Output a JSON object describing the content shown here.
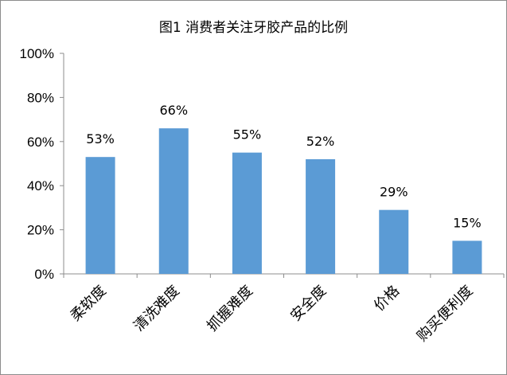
{
  "chart_data": {
    "type": "bar",
    "title": "图1 消费者关注牙胶产品的比例",
    "categories": [
      "柔软度",
      "清洗难度",
      "抓握难度",
      "安全度",
      "价格",
      "购买便利度"
    ],
    "values": [
      53,
      66,
      55,
      52,
      29,
      15
    ],
    "data_labels": [
      "53%",
      "66%",
      "55%",
      "52%",
      "29%",
      "15%"
    ],
    "y_ticks": [
      "0%",
      "20%",
      "40%",
      "60%",
      "80%",
      "100%"
    ],
    "ylim": [
      0,
      100
    ],
    "xlabel": "",
    "ylabel": "",
    "grid": false,
    "legend": "none",
    "bar_color": "#5b9bd5"
  }
}
